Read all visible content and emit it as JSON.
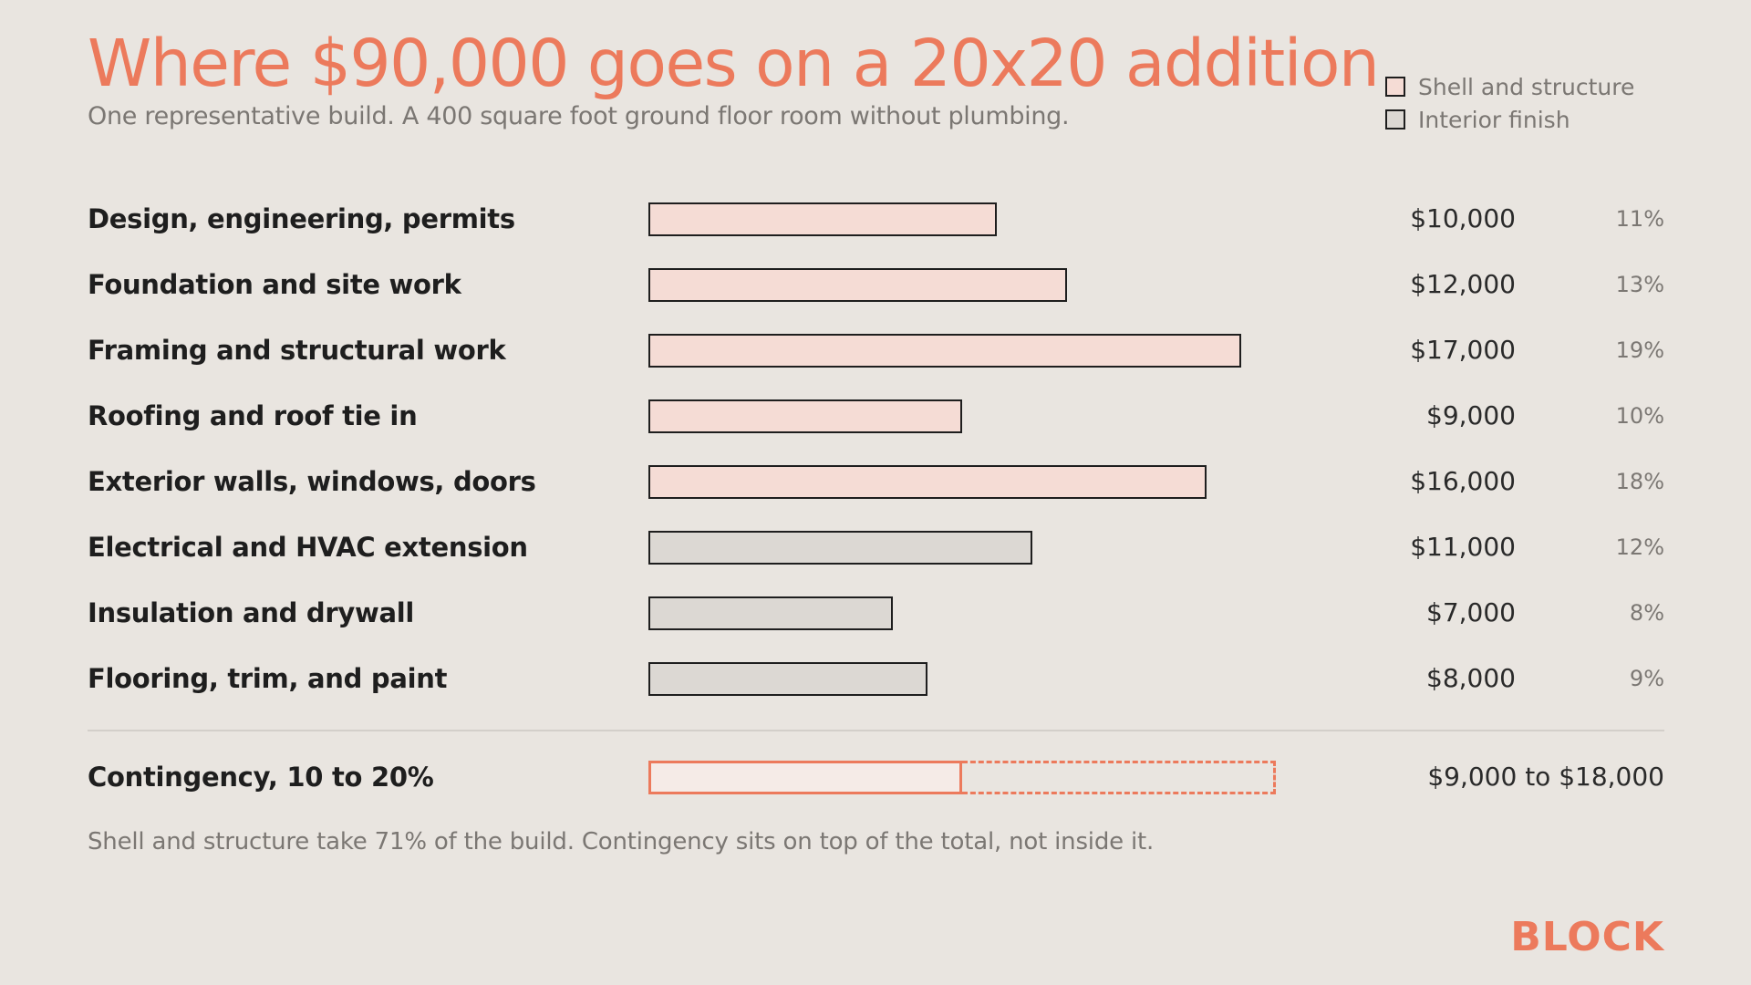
{
  "title": "Where $90,000 goes on a 20x20 addition",
  "subtitle": "One representative build. A 400 square foot ground floor room without plumbing.",
  "legend": [
    {
      "label": "Shell and structure",
      "color": "#f5dcd5"
    },
    {
      "label": "Interior finish",
      "color": "#dcd8d3"
    }
  ],
  "chart_data": {
    "type": "bar",
    "orientation": "horizontal",
    "title": "Where $90,000 goes on a 20x20 addition",
    "subtitle": "One representative build. A 400 square foot ground floor room without plumbing.",
    "categories": [
      "Design, engineering, permits",
      "Foundation and site work",
      "Framing and structural work",
      "Roofing and roof tie in",
      "Exterior walls, windows, doors",
      "Electrical and HVAC extension",
      "Insulation and drywall",
      "Flooring, trim, and paint"
    ],
    "values": [
      10000,
      12000,
      17000,
      9000,
      16000,
      11000,
      7000,
      8000
    ],
    "value_labels": [
      "$10,000",
      "$12,000",
      "$17,000",
      "$9,000",
      "$16,000",
      "$11,000",
      "$7,000",
      "$8,000"
    ],
    "percent_labels": [
      "11%",
      "13%",
      "19%",
      "10%",
      "18%",
      "12%",
      "8%",
      "9%"
    ],
    "groups": [
      "Shell and structure",
      "Shell and structure",
      "Shell and structure",
      "Shell and structure",
      "Shell and structure",
      "Interior finish",
      "Interior finish",
      "Interior finish"
    ],
    "group_colors": {
      "Shell and structure": "#f5dcd5",
      "Interior finish": "#dcd8d3"
    },
    "xlim": [
      0,
      18000
    ],
    "grid": false,
    "legend_position": "top-right",
    "contingency": {
      "label": "Contingency, 10 to 20%",
      "low": 9000,
      "high": 18000,
      "value_label": "$9,000 to $18,000",
      "color": "#ec7a5c"
    }
  },
  "footnote": "Shell and structure take 71% of the build. Contingency sits on top of the total, not inside it.",
  "brand": "BLOCK"
}
